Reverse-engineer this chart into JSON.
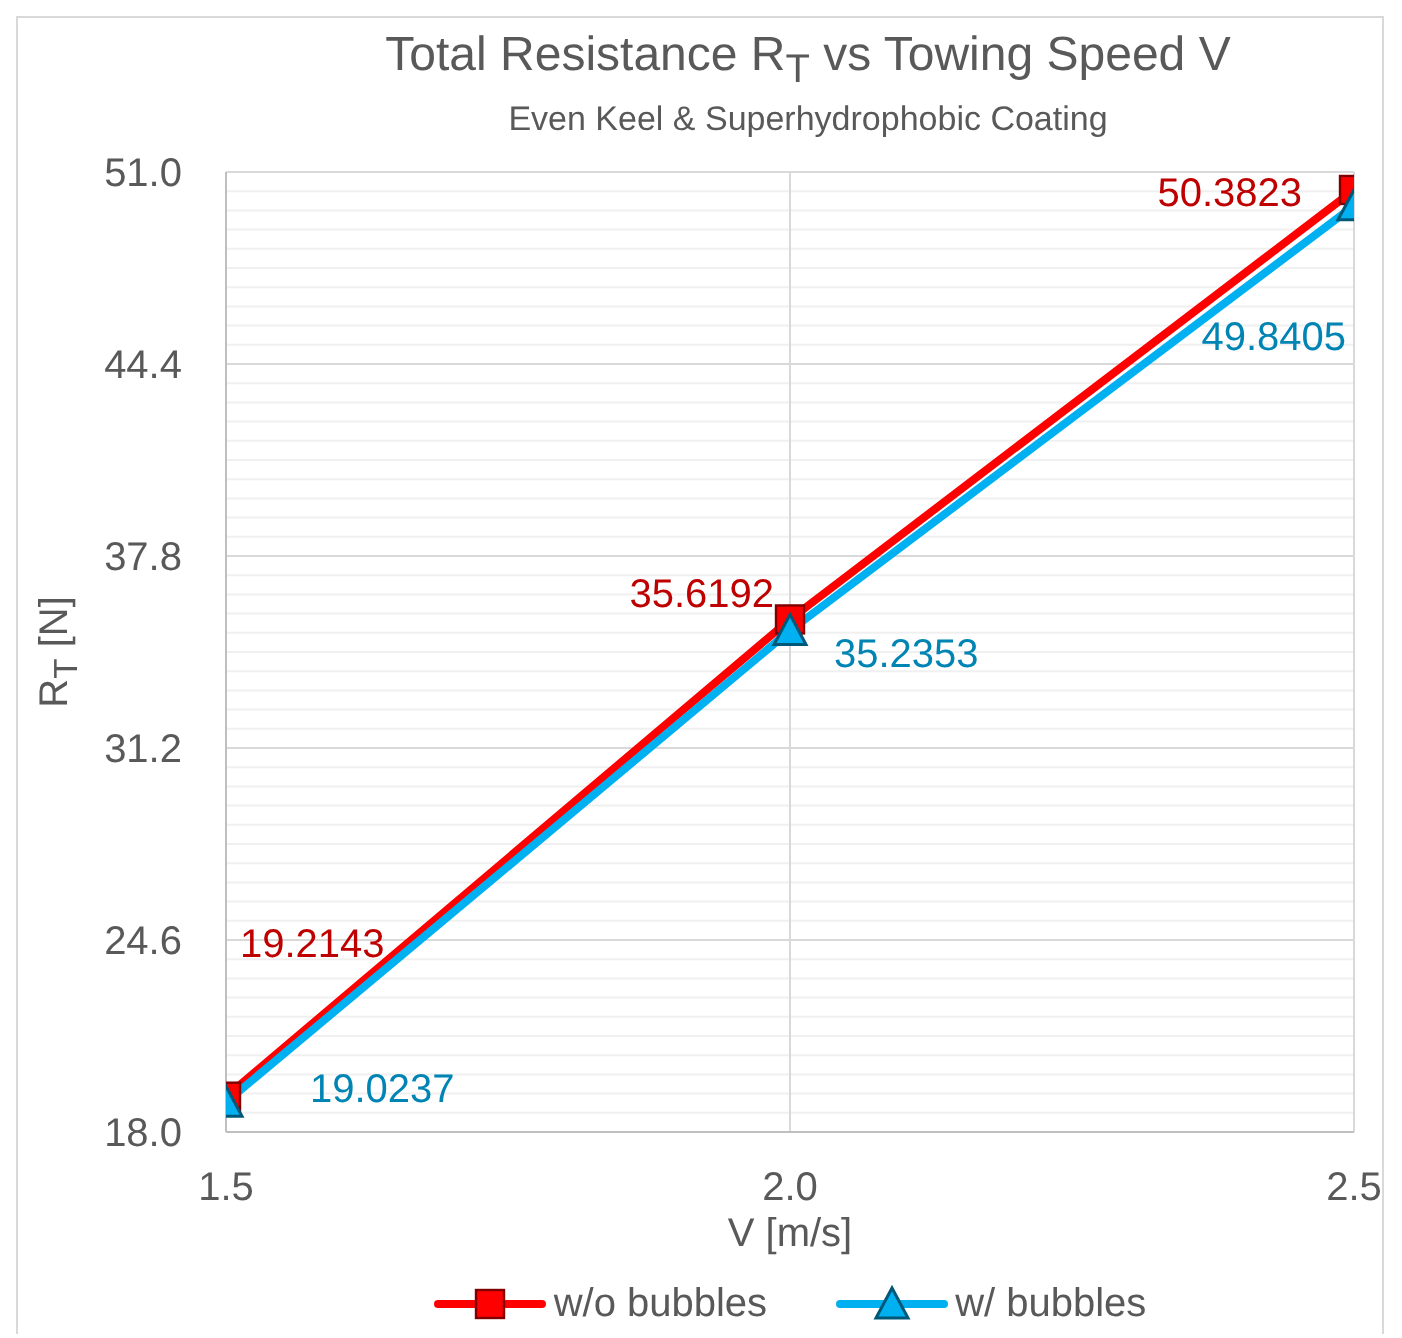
{
  "chart_data": {
    "type": "line",
    "title": "Total Resistance R$_{T}$ vs Towing Speed V",
    "subtitle": "Even Keel & Superhydrophobic Coating",
    "xlabel": "V [m/s]",
    "ylabel": "R$_{T}$ [N]",
    "x": [
      1.5,
      2,
      2.5
    ],
    "series": [
      {
        "name": "w/o bubbles",
        "color": "#ff0000",
        "marker": "square",
        "values": [
          19.2143,
          35.6192,
          50.3823
        ]
      },
      {
        "name": "w/ bubbles",
        "color": "#00b0f0",
        "marker": "triangle",
        "values": [
          19.0237,
          35.2353,
          49.8405
        ]
      }
    ],
    "xlim": [
      1.5,
      2.5
    ],
    "xticks": [
      1.5,
      {
        "value": 2,
        "label": "2.0"
      },
      2.5
    ],
    "ylim": [
      18,
      51
    ],
    "yticks": [
      {
        "value": 18,
        "label": "18.0"
      },
      {
        "value": 18.66,
        "label": null
      },
      {
        "value": 19.32,
        "label": null
      },
      {
        "value": 19.98,
        "label": null
      },
      {
        "value": 20.64,
        "label": null
      },
      {
        "value": 21.3,
        "label": null
      },
      {
        "value": 21.96,
        "label": null
      },
      {
        "value": 22.62,
        "label": null
      },
      {
        "value": 23.28,
        "label": null
      },
      {
        "value": 23.94,
        "label": null
      },
      24.6,
      {
        "value": 25.26,
        "label": null
      },
      {
        "value": 25.92,
        "label": null
      },
      {
        "value": 26.58,
        "label": null
      },
      {
        "value": 27.24,
        "label": null
      },
      {
        "value": 27.9,
        "label": null
      },
      {
        "value": 28.56,
        "label": null
      },
      {
        "value": 29.22,
        "label": null
      },
      {
        "value": 29.88,
        "label": null
      },
      {
        "value": 30.54,
        "label": null
      },
      31.2,
      {
        "value": 31.86,
        "label": null
      },
      {
        "value": 32.52,
        "label": null
      },
      {
        "value": 33.18,
        "label": null
      },
      {
        "value": 33.84,
        "label": null
      },
      {
        "value": 34.5,
        "label": null
      },
      {
        "value": 35.16,
        "label": null
      },
      {
        "value": 35.82,
        "label": null
      },
      {
        "value": 36.48,
        "label": null
      },
      {
        "value": 37.14,
        "label": null
      },
      37.8,
      {
        "value": 38.46,
        "label": null
      },
      {
        "value": 39.12,
        "label": null
      },
      {
        "value": 39.78,
        "label": null
      },
      {
        "value": 40.44,
        "label": null
      },
      {
        "value": 41.1,
        "label": null
      },
      {
        "value": 41.76,
        "label": null
      },
      {
        "value": 42.42,
        "label": null
      },
      {
        "value": 43.08,
        "label": null
      },
      {
        "value": 43.74,
        "label": null
      },
      44.4,
      {
        "value": 45.06,
        "label": null
      },
      {
        "value": 45.72,
        "label": null
      },
      {
        "value": 46.38,
        "label": null
      },
      {
        "value": 47.04,
        "label": null
      },
      {
        "value": 47.7,
        "label": null
      },
      {
        "value": 48.36,
        "label": null
      },
      {
        "value": 49.02,
        "label": null
      },
      {
        "value": 49.68,
        "label": null
      },
      {
        "value": 50.34,
        "label": null
      },
      {
        "value": 51,
        "label": "51.0"
      }
    ],
    "grid": true,
    "legend": "bottom",
    "data_labels": true,
    "line_style": "solid"
  }
}
